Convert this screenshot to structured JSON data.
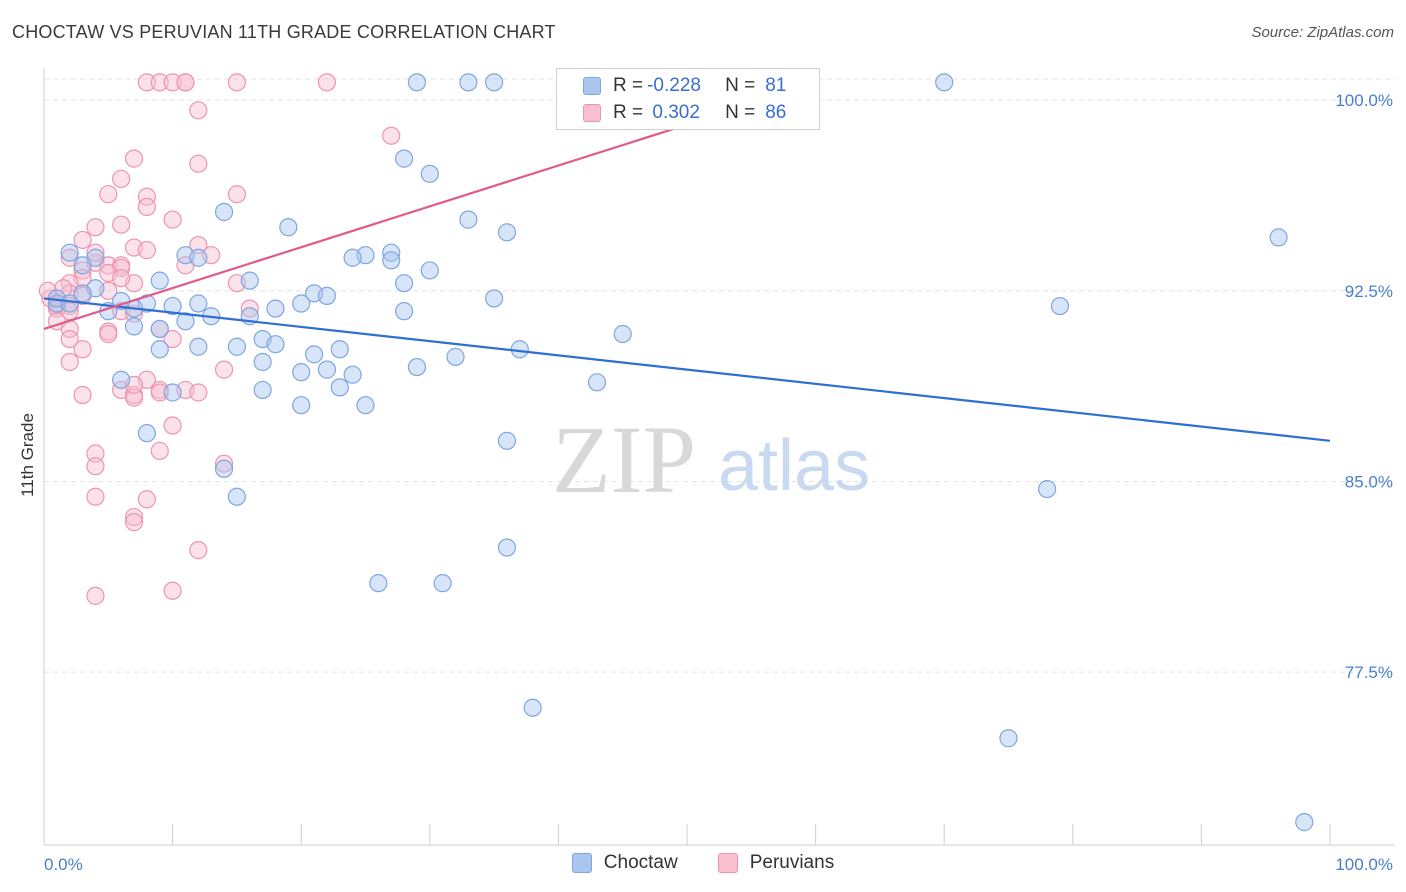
{
  "header": {
    "title": "CHOCTAW VS PERUVIAN 11TH GRADE CORRELATION CHART",
    "source": "Source: ZipAtlas.com"
  },
  "watermark": {
    "zip": "ZIP",
    "atlas": "atlas"
  },
  "legend_top": {
    "rows": [
      {
        "r_label": "R = ",
        "r_value": "-0.228",
        "n_label": "N = ",
        "n_value": "81",
        "color": "#a9c6ef",
        "border": "#7ea6df"
      },
      {
        "r_label": "R = ",
        "r_value": " 0.302",
        "n_label": "N = ",
        "n_value": "86",
        "color": "#f7bfd0",
        "border": "#ee94b0"
      }
    ]
  },
  "legend_bottom": {
    "items": [
      {
        "label": "Choctaw",
        "color": "#a9c6ef",
        "border": "#7ea6df"
      },
      {
        "label": "Peruvians",
        "color": "#f7bfd0",
        "border": "#ee94b0"
      }
    ]
  },
  "chart_data": {
    "type": "scatter",
    "title": "CHOCTAW VS PERUVIAN 11TH GRADE CORRELATION CHART",
    "xlabel": "",
    "ylabel": "11th Grade",
    "xlim": [
      0,
      100
    ],
    "ylim": [
      70.7,
      101.5
    ],
    "x_tick_labels": [
      {
        "value": 0,
        "label": "0.0%"
      },
      {
        "value": 100,
        "label": "100.0%"
      }
    ],
    "y_ticks": [
      {
        "value": 100.0,
        "label": "100.0%"
      },
      {
        "value": 92.5,
        "label": "92.5%"
      },
      {
        "value": 85.0,
        "label": "85.0%"
      },
      {
        "value": 77.5,
        "label": "77.5%"
      }
    ],
    "grid": "horizontal-dashed",
    "series": [
      {
        "name": "Choctaw",
        "color": "#7ea6df",
        "fill": "#a9c6ef",
        "trend": {
          "x": [
            0,
            100
          ],
          "y": [
            92.2,
            86.6
          ],
          "color": "#2e6fd0"
        },
        "points": [
          [
            29,
            100.7
          ],
          [
            33,
            100.7
          ],
          [
            35,
            100.7
          ],
          [
            47,
            100.7
          ],
          [
            70,
            100.7
          ],
          [
            28,
            97.7
          ],
          [
            30,
            97.1
          ],
          [
            14,
            95.6
          ],
          [
            19,
            95.0
          ],
          [
            33,
            95.3
          ],
          [
            36,
            94.8
          ],
          [
            2,
            94.0
          ],
          [
            4,
            93.8
          ],
          [
            11,
            93.9
          ],
          [
            12,
            93.8
          ],
          [
            25,
            93.9
          ],
          [
            24,
            93.8
          ],
          [
            27,
            94.0
          ],
          [
            27,
            93.7
          ],
          [
            30,
            93.3
          ],
          [
            3,
            93.5
          ],
          [
            9,
            92.9
          ],
          [
            16,
            92.9
          ],
          [
            28,
            92.8
          ],
          [
            4,
            92.6
          ],
          [
            1,
            92.0
          ],
          [
            1,
            92.2
          ],
          [
            2,
            92.0
          ],
          [
            21,
            92.4
          ],
          [
            22,
            92.3
          ],
          [
            35,
            92.2
          ],
          [
            8,
            92.0
          ],
          [
            20,
            92.0
          ],
          [
            28,
            91.7
          ],
          [
            10,
            91.9
          ],
          [
            5,
            91.7
          ],
          [
            7,
            91.8
          ],
          [
            11,
            91.3
          ],
          [
            13,
            91.5
          ],
          [
            16,
            91.5
          ],
          [
            7,
            91.1
          ],
          [
            9,
            91.0
          ],
          [
            45,
            90.8
          ],
          [
            79,
            91.9
          ],
          [
            17,
            90.6
          ],
          [
            15,
            90.3
          ],
          [
            12,
            90.3
          ],
          [
            9,
            90.2
          ],
          [
            18,
            90.4
          ],
          [
            21,
            90.0
          ],
          [
            23,
            90.2
          ],
          [
            37,
            90.2
          ],
          [
            32,
            89.9
          ],
          [
            17,
            89.7
          ],
          [
            22,
            89.4
          ],
          [
            20,
            89.3
          ],
          [
            29,
            89.5
          ],
          [
            24,
            89.2
          ],
          [
            23,
            88.7
          ],
          [
            6,
            89.0
          ],
          [
            10,
            88.5
          ],
          [
            17,
            88.6
          ],
          [
            43,
            88.9
          ],
          [
            20,
            88.0
          ],
          [
            25,
            88.0
          ],
          [
            36,
            86.6
          ],
          [
            8,
            86.9
          ],
          [
            14,
            85.5
          ],
          [
            15,
            84.4
          ],
          [
            78,
            84.7
          ],
          [
            36,
            82.4
          ],
          [
            26,
            81.0
          ],
          [
            31,
            81.0
          ],
          [
            38,
            76.1
          ],
          [
            75,
            74.9
          ],
          [
            96,
            94.6
          ],
          [
            98,
            71.6
          ],
          [
            3,
            92.4
          ],
          [
            6,
            92.1
          ],
          [
            12,
            92.0
          ],
          [
            18,
            91.8
          ]
        ]
      },
      {
        "name": "Peruvians",
        "color": "#ee94b0",
        "fill": "#f7bfd0",
        "trend": {
          "x": [
            0,
            56
          ],
          "y": [
            91.0,
            100.0
          ],
          "color": "#e05a8a"
        },
        "points": [
          [
            8,
            100.7
          ],
          [
            9,
            100.7
          ],
          [
            10,
            100.7
          ],
          [
            11,
            100.7
          ],
          [
            11,
            100.7
          ],
          [
            15,
            100.7
          ],
          [
            22,
            100.7
          ],
          [
            53,
            100.7
          ],
          [
            12,
            99.6
          ],
          [
            27,
            98.6
          ],
          [
            7,
            97.7
          ],
          [
            12,
            97.5
          ],
          [
            6,
            96.9
          ],
          [
            5,
            96.3
          ],
          [
            8,
            96.2
          ],
          [
            15,
            96.3
          ],
          [
            8,
            95.8
          ],
          [
            10,
            95.3
          ],
          [
            6,
            95.1
          ],
          [
            4,
            95.0
          ],
          [
            3,
            94.5
          ],
          [
            12,
            94.3
          ],
          [
            7,
            94.2
          ],
          [
            8,
            94.1
          ],
          [
            2,
            93.8
          ],
          [
            4,
            93.6
          ],
          [
            5,
            93.5
          ],
          [
            6,
            93.5
          ],
          [
            6,
            93.4
          ],
          [
            3,
            93.3
          ],
          [
            5,
            93.2
          ],
          [
            3,
            93.0
          ],
          [
            2,
            92.8
          ],
          [
            7,
            92.8
          ],
          [
            15,
            92.8
          ],
          [
            2,
            92.4
          ],
          [
            3,
            92.3
          ],
          [
            1,
            92.2
          ],
          [
            0.5,
            92.2
          ],
          [
            1,
            92.0
          ],
          [
            1,
            91.9
          ],
          [
            2,
            91.9
          ],
          [
            1,
            91.8
          ],
          [
            2,
            91.7
          ],
          [
            6,
            91.7
          ],
          [
            16,
            91.8
          ],
          [
            7,
            91.6
          ],
          [
            1,
            91.3
          ],
          [
            2,
            91.0
          ],
          [
            5,
            90.9
          ],
          [
            9,
            91.0
          ],
          [
            5,
            90.8
          ],
          [
            2,
            90.6
          ],
          [
            10,
            90.6
          ],
          [
            3,
            90.2
          ],
          [
            2,
            89.7
          ],
          [
            14,
            89.4
          ],
          [
            8,
            89.0
          ],
          [
            6,
            88.6
          ],
          [
            7,
            88.4
          ],
          [
            9,
            88.6
          ],
          [
            11,
            88.6
          ],
          [
            3,
            88.4
          ],
          [
            7,
            88.3
          ],
          [
            9,
            88.5
          ],
          [
            12,
            88.5
          ],
          [
            7,
            88.8
          ],
          [
            10,
            87.2
          ],
          [
            9,
            86.2
          ],
          [
            4,
            86.1
          ],
          [
            4,
            85.6
          ],
          [
            14,
            85.7
          ],
          [
            4,
            84.4
          ],
          [
            8,
            84.3
          ],
          [
            7,
            83.6
          ],
          [
            7,
            83.4
          ],
          [
            12,
            82.3
          ],
          [
            4,
            80.5
          ],
          [
            10,
            80.7
          ],
          [
            0.3,
            92.5
          ],
          [
            1.5,
            92.6
          ],
          [
            5,
            92.5
          ],
          [
            6,
            93.0
          ],
          [
            11,
            93.5
          ],
          [
            4,
            94.0
          ],
          [
            13,
            93.9
          ]
        ]
      }
    ]
  }
}
